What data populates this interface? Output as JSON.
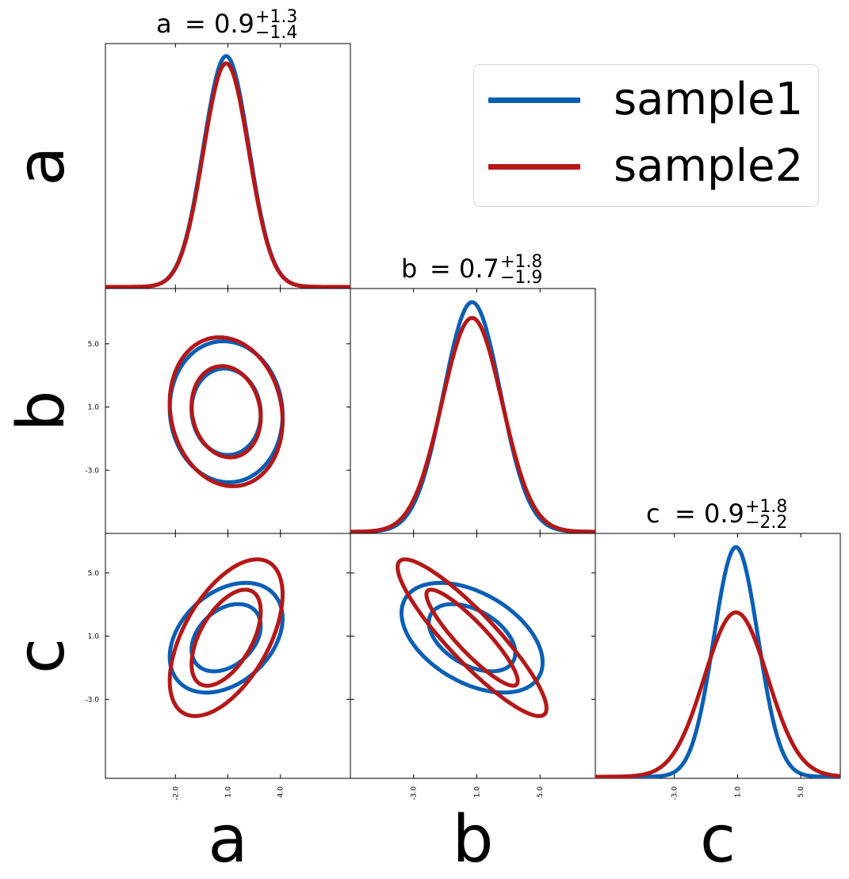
{
  "chart_data": {
    "type": "corner",
    "parameters": [
      "a",
      "b",
      "c"
    ],
    "axis_labels": [
      "a",
      "b",
      "c"
    ],
    "axis_ranges": {
      "a": [
        -6.0,
        8.0
      ],
      "b": [
        -7.0,
        8.5
      ],
      "c": [
        -8.0,
        7.5
      ]
    },
    "ticks": {
      "a": {
        "values": [
          -2.0,
          1.0,
          4.0
        ],
        "labels": [
          "-2.0",
          "1.0",
          "4.0"
        ]
      },
      "b": {
        "values": [
          -3.0,
          1.0,
          5.0
        ],
        "labels": [
          "-3.0",
          "1.0",
          "5.0"
        ]
      },
      "c": {
        "values": [
          -3.0,
          1.0,
          5.0
        ],
        "labels": [
          "-3.0",
          "1.0",
          "5.0"
        ]
      }
    },
    "titles": [
      {
        "param": "a",
        "name": "a",
        "equals": "= 0.9",
        "plus": "+1.3",
        "minus": "−1.4"
      },
      {
        "param": "b",
        "name": "b",
        "equals": "= 0.7",
        "plus": "+1.8",
        "minus": "−1.9"
      },
      {
        "param": "c",
        "name": "c",
        "equals": "= 0.9",
        "plus": "+1.8",
        "minus": "−2.2"
      }
    ],
    "series": [
      {
        "name": "sample1",
        "color": "#0a5fb4",
        "mean": {
          "a": 0.9,
          "b": 0.7,
          "c": 0.9
        },
        "sd": {
          "a": 1.3,
          "b": 1.8,
          "c": 1.4
        },
        "rho": {
          "ab": -0.05,
          "ac": 0.35,
          "bc": -0.45
        },
        "peak_heights": {
          "a": 0.955,
          "b": 0.95,
          "c": 0.95
        }
      },
      {
        "name": "sample2",
        "color": "#b41818",
        "mean": {
          "a": 0.9,
          "b": 0.7,
          "c": 0.9
        },
        "sd": {
          "a": 1.3,
          "b": 1.9,
          "c": 2.0
        },
        "rho": {
          "ab": -0.12,
          "ac": 0.55,
          "bc": -0.9
        },
        "peak_heights": {
          "a": 0.925,
          "b": 0.885,
          "c": 0.68
        }
      }
    ],
    "contour_levels": [
      "1-sigma",
      "2-sigma"
    ],
    "legend": {
      "position": "top-right"
    },
    "grid": false
  }
}
